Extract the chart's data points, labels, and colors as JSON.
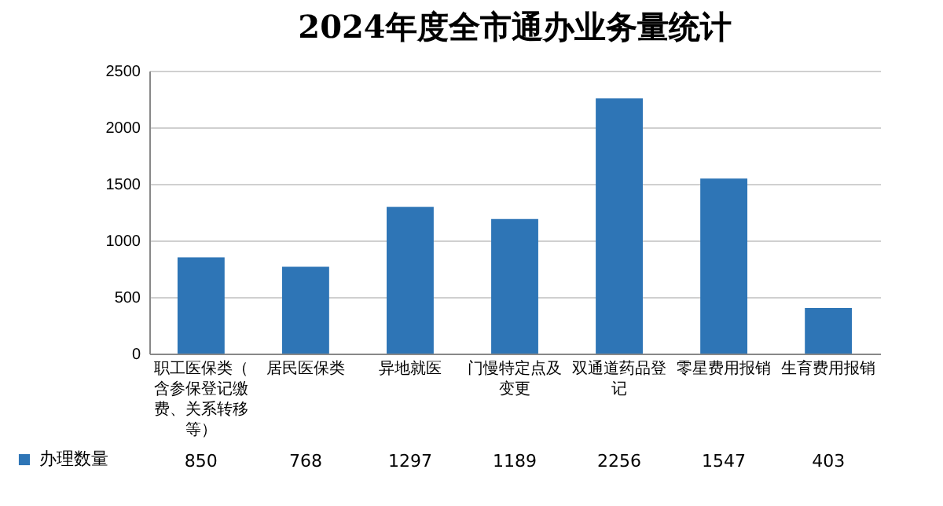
{
  "chart_data": {
    "type": "bar",
    "title": "2024年度全市通办业务量统计",
    "categories": [
      "职工医保类（含参保登记缴费、关系转移等）",
      "居民医保类",
      "异地就医",
      "门慢特定点及变更",
      "双通道药品登记",
      "零星费用报销",
      "生育费用报销"
    ],
    "series": [
      {
        "name": "办理数量",
        "color": "#2e75b6",
        "values": [
          850,
          768,
          1297,
          1189,
          2256,
          1547,
          403
        ]
      }
    ],
    "ylim": [
      0,
      2500
    ],
    "yticks": [
      0,
      500,
      1000,
      1500,
      2000,
      2500
    ],
    "grid": "y",
    "data_labels": true,
    "legend": "bottom left"
  }
}
